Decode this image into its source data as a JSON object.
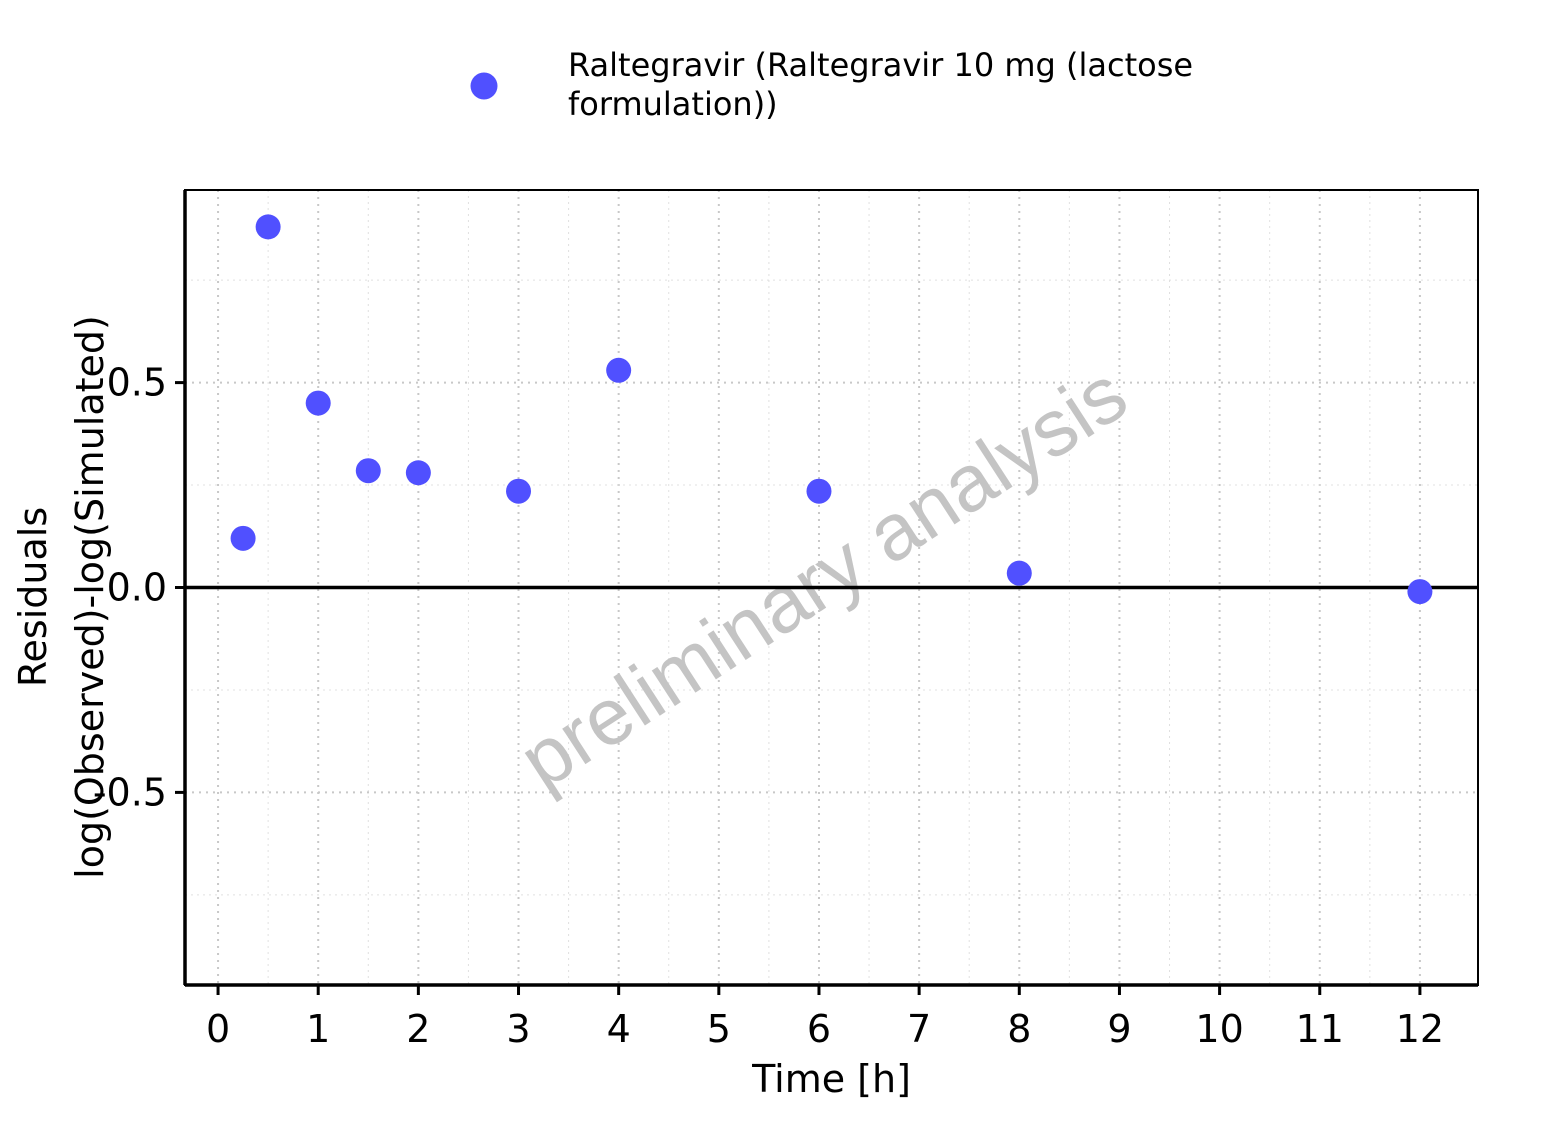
{
  "chart_data": {
    "type": "scatter",
    "title": "",
    "xlabel": "Time [h]",
    "ylabel_lines": [
      "Residuals",
      "log(Observed)-log(Simulated)"
    ],
    "xlim": [
      -0.33,
      12.58
    ],
    "ylim": [
      -0.97,
      0.97
    ],
    "x_ticks": [
      0,
      1,
      2,
      3,
      4,
      5,
      6,
      7,
      8,
      9,
      10,
      11,
      12
    ],
    "x_tick_labels": [
      "0",
      "1",
      "2",
      "3",
      "4",
      "5",
      "6",
      "7",
      "8",
      "9",
      "10",
      "11",
      "12"
    ],
    "y_ticks": [
      -0.5,
      0.0,
      0.5
    ],
    "y_tick_labels": [
      "-0.5",
      "0.0",
      "0.5"
    ],
    "grid": true,
    "reference_line_y": 0,
    "legend_position": "top",
    "watermark": "preliminary analysis",
    "series": [
      {
        "name": "Raltegravir (Raltegravir 10 mg (lactose formulation))",
        "legend_lines": [
          "Raltegravir (Raltegravir 10 mg (lactose",
          "formulation))"
        ],
        "color": "#5050ff",
        "points": [
          {
            "x": 0.25,
            "y": 0.12
          },
          {
            "x": 0.5,
            "y": 0.88
          },
          {
            "x": 1,
            "y": 0.45
          },
          {
            "x": 1.5,
            "y": 0.285
          },
          {
            "x": 2,
            "y": 0.28
          },
          {
            "x": 3,
            "y": 0.235
          },
          {
            "x": 4,
            "y": 0.53
          },
          {
            "x": 6,
            "y": 0.235
          },
          {
            "x": 8,
            "y": 0.035
          },
          {
            "x": 12,
            "y": -0.01
          }
        ]
      }
    ]
  }
}
